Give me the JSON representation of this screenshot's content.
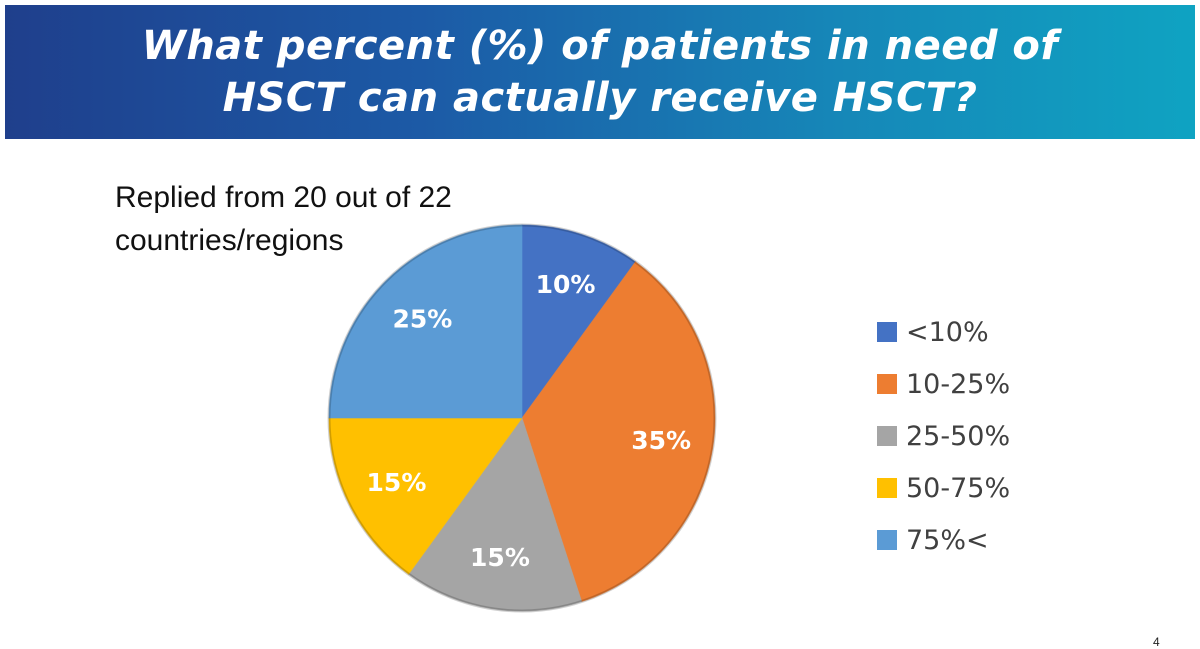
{
  "header": {
    "title": "What percent (%) of patients in need of HSCT can actually receive HSCT?"
  },
  "subtitle": "Replied from 20 out of 22 countries/regions",
  "page_number": "4",
  "chart_data": {
    "type": "pie",
    "categories": [
      "<10%",
      "10-25%",
      "25-50%",
      "50-75%",
      "75%<"
    ],
    "values": [
      10,
      35,
      15,
      15,
      25
    ],
    "data_labels": [
      "10%",
      "35%",
      "15%",
      "15%",
      "25%"
    ],
    "colors": [
      "#4472C4",
      "#ED7D31",
      "#A5A5A5",
      "#FFC000",
      "#5B9BD5"
    ],
    "start_angle": "12 o'clock",
    "direction": "clockwise",
    "legend_position": "right"
  }
}
